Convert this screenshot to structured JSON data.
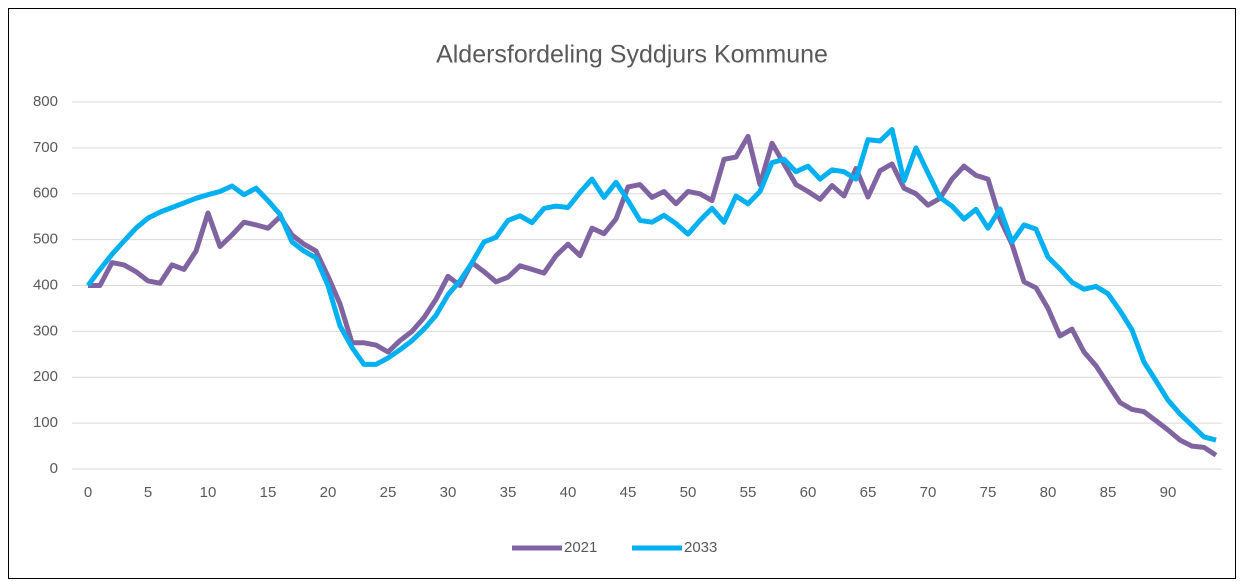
{
  "chart_data": {
    "type": "line",
    "title": "Aldersfordeling  Syddjurs Kommune",
    "x": [
      0,
      1,
      2,
      3,
      4,
      5,
      6,
      7,
      8,
      9,
      10,
      11,
      12,
      13,
      14,
      15,
      16,
      17,
      18,
      19,
      20,
      21,
      22,
      23,
      24,
      25,
      26,
      27,
      28,
      29,
      30,
      31,
      32,
      33,
      34,
      35,
      36,
      37,
      38,
      39,
      40,
      41,
      42,
      43,
      44,
      45,
      46,
      47,
      48,
      49,
      50,
      51,
      52,
      53,
      54,
      55,
      56,
      57,
      58,
      59,
      60,
      61,
      62,
      63,
      64,
      65,
      66,
      67,
      68,
      69,
      70,
      71,
      72,
      73,
      74,
      75,
      76,
      77,
      78,
      79,
      80,
      81,
      82,
      83,
      84,
      85,
      86,
      87,
      88,
      89,
      90,
      91,
      92,
      93,
      94
    ],
    "xlim": [
      0,
      94
    ],
    "xticks": [
      0,
      5,
      10,
      15,
      20,
      25,
      30,
      35,
      40,
      45,
      50,
      55,
      60,
      65,
      70,
      75,
      80,
      85,
      90
    ],
    "ylim": [
      0,
      800
    ],
    "yticks": [
      0,
      100,
      200,
      300,
      400,
      500,
      600,
      700,
      800
    ],
    "grid": true,
    "legend": "bottom",
    "series": [
      {
        "name": "2021",
        "color": "#8064a2",
        "values": [
          400,
          400,
          450,
          445,
          430,
          410,
          405,
          445,
          435,
          475,
          558,
          485,
          510,
          538,
          532,
          525,
          550,
          510,
          490,
          475,
          420,
          360,
          275,
          275,
          270,
          255,
          280,
          300,
          330,
          370,
          420,
          400,
          450,
          430,
          408,
          418,
          443,
          435,
          427,
          465,
          490,
          465,
          525,
          513,
          545,
          615,
          620,
          592,
          605,
          578,
          605,
          600,
          585,
          675,
          680,
          725,
          620,
          710,
          665,
          620,
          605,
          588,
          618,
          595,
          655,
          593,
          650,
          665,
          612,
          600,
          575,
          590,
          632,
          660,
          640,
          632,
          545,
          490,
          408,
          395,
          350,
          290,
          305,
          255,
          225,
          185,
          145,
          130,
          125,
          105,
          85,
          63,
          50,
          47,
          30
        ]
      },
      {
        "name": "2033",
        "color": "#00b0f0",
        "values": [
          400,
          435,
          468,
          497,
          525,
          547,
          560,
          570,
          580,
          590,
          598,
          605,
          617,
          598,
          612,
          585,
          555,
          495,
          475,
          460,
          400,
          312,
          265,
          228,
          228,
          242,
          260,
          280,
          305,
          335,
          380,
          410,
          450,
          495,
          505,
          542,
          552,
          537,
          568,
          573,
          570,
          603,
          632,
          592,
          625,
          585,
          542,
          538,
          553,
          535,
          512,
          542,
          568,
          538,
          595,
          578,
          605,
          668,
          675,
          648,
          660,
          632,
          652,
          648,
          632,
          718,
          715,
          740,
          628,
          700,
          645,
          592,
          573,
          545,
          566,
          525,
          567,
          495,
          532,
          523,
          462,
          436,
          407,
          392,
          398,
          382,
          345,
          303,
          233,
          192,
          150,
          120,
          95,
          70,
          63
        ]
      }
    ]
  }
}
